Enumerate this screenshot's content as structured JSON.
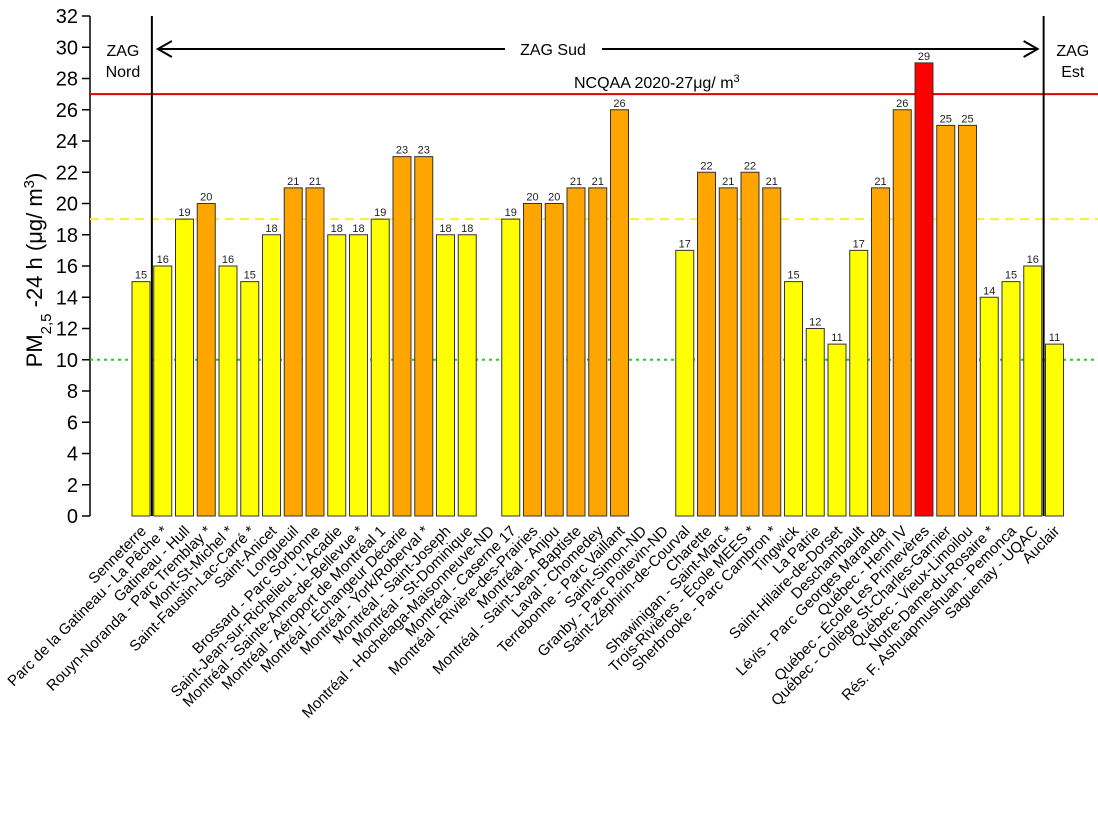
{
  "chart_data": {
    "type": "bar",
    "title": "",
    "ylabel": {
      "prefix": "PM",
      "subscript": "2,5",
      "suffix": " -24 h (",
      "mu": "μ",
      "unit": "g/ m",
      "sup": "3",
      "close": ")"
    },
    "ylim": [
      0,
      32
    ],
    "yticks": [
      "0",
      "2",
      "4",
      "6",
      "8",
      "10",
      "12",
      "14",
      "16",
      "18",
      "20",
      "22",
      "24",
      "26",
      "28",
      "30",
      "32"
    ],
    "categories": [
      "Senneterre",
      "Parc de la Gatineau - La Pêche *",
      "Gatineau - Hull",
      "Rouyn-Noranda - Parc Tremblay *",
      "Mont-St-Michel *",
      "Saint-Faustin-Lac-Carré *",
      "Saint-Anicet",
      "Longueuil",
      "Brossard - Parc Sorbonne",
      "Saint-Jean-sur-Richelieu - L'Acadie",
      "Montréal - Sainte-Anne-de-Bellevue *",
      "Montréal - Aéroport de Montréal 1",
      "Montréal - Échangeur Décarie",
      "Montréal - York/Roberval *",
      "Montréal - Saint-Joseph",
      "Montréal - St-Dominique",
      "Montréal - Hochelaga-Maisonneuve-ND",
      "Montréal - Caserne 17",
      "Montréal - Rivière-des-Prairies",
      "Montréal - Anjou",
      "Montréal - Saint-Jean-Baptiste",
      "Laval - Chomedey",
      "Terrebonne - Parc Vaillant",
      "Saint-Simon-ND",
      "Granby - Parc Poitevin-ND",
      "Saint-Zéphirin-de-Courval",
      "Charette",
      "Shawinigan - Saint-Marc *",
      "Trois-Rivières - École MEES *",
      "Sherbrooke - Parc Cambron *",
      "Tingwick",
      "La Patrie",
      "Saint-Hilaire-de-Dorset",
      "Deschambault",
      "Lévis - Parc Georges Maranda",
      "Québec - Henri IV",
      "Québec - École Les Primevères",
      "Québec - Collège St-Charles-Garnier",
      "Québec - Vieux-Limoilou",
      "Notre-Dame-du-Rosaire *",
      "Rés. F. Ashuapmushuan - Pemonca",
      "Saguenay - UQAC",
      "Auclair"
    ],
    "values": [
      15,
      16,
      19,
      20,
      16,
      15,
      18,
      21,
      21,
      18,
      18,
      19,
      23,
      23,
      18,
      18,
      null,
      19,
      20,
      20,
      21,
      21,
      26,
      null,
      null,
      17,
      22,
      21,
      22,
      21,
      15,
      12,
      11,
      17,
      21,
      26,
      29,
      25,
      25,
      14,
      15,
      16,
      11
    ],
    "value_labels": [
      "15",
      "16",
      "19",
      "20",
      "16",
      "15",
      "18",
      "21",
      "21",
      "18",
      "18",
      "19",
      "23",
      "23",
      "18",
      "18",
      "",
      "19",
      "20",
      "20",
      "21",
      "21",
      "26",
      "",
      "",
      "17",
      "22",
      "21",
      "22",
      "21",
      "15",
      "12",
      "11",
      "17",
      "21",
      "26",
      "29",
      "25",
      "25",
      "14",
      "15",
      "16",
      "11"
    ],
    "colors": {
      "low": "#ffff00",
      "mid": "#ffa500",
      "high": "#ff0000",
      "bar_stroke": "#333333",
      "norm_line": "#e00000",
      "dash_line": "#ffeb3b",
      "green_line": "#22cc22"
    },
    "reference_lines": [
      {
        "value": 27,
        "label": "NCQAA 2020-27",
        "label_mu": "μ",
        "label_unit": "g/ m",
        "label_sup": "3",
        "style": "solid",
        "color": "#e00000"
      },
      {
        "value": 19,
        "label": "",
        "style": "dashed",
        "color": "#ffeb3b"
      },
      {
        "value": 10,
        "label": "",
        "style": "dotted",
        "color": "#22cc22"
      }
    ],
    "zones": [
      {
        "label_line1": "ZAG",
        "label_line2": "Nord"
      },
      {
        "label_line1": "ZAG Sud",
        "label_line2": ""
      },
      {
        "label_line1": "ZAG",
        "label_line2": "Est"
      }
    ],
    "zone_dividers_after_index": [
      0,
      41
    ]
  }
}
